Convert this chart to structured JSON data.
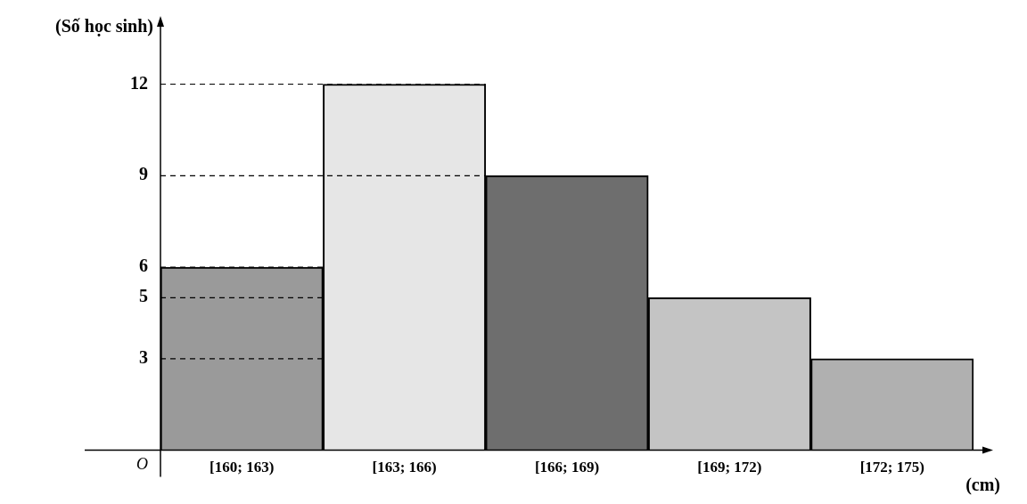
{
  "chart_data": {
    "type": "bar",
    "categories": [
      "[160; 163)",
      "[163; 166)",
      "[166; 169)",
      "[169; 172)",
      "[172; 175)"
    ],
    "values": [
      6,
      12,
      9,
      5,
      3
    ],
    "colors": [
      "#9a9a9a",
      "#e6e6e6",
      "#6e6e6e",
      "#c4c4c4",
      "#b0b0b0"
    ],
    "ylabel": "(Số học sinh)",
    "xlabel": "(cm)",
    "annotations": [
      "O"
    ],
    "ylim": [
      0,
      14
    ],
    "yticks": [
      3,
      5,
      6,
      9,
      12
    ],
    "ref_lines": [
      {
        "axis": "y",
        "value": 3,
        "line_style": "dashed"
      },
      {
        "axis": "y",
        "value": 5,
        "line_style": "dashed"
      },
      {
        "axis": "y",
        "value": 6,
        "line_style": "dashed"
      },
      {
        "axis": "y",
        "value": 9,
        "line_style": "dashed"
      },
      {
        "axis": "y",
        "value": 12,
        "line_style": "dashed"
      }
    ],
    "grid": false,
    "legend": false
  }
}
